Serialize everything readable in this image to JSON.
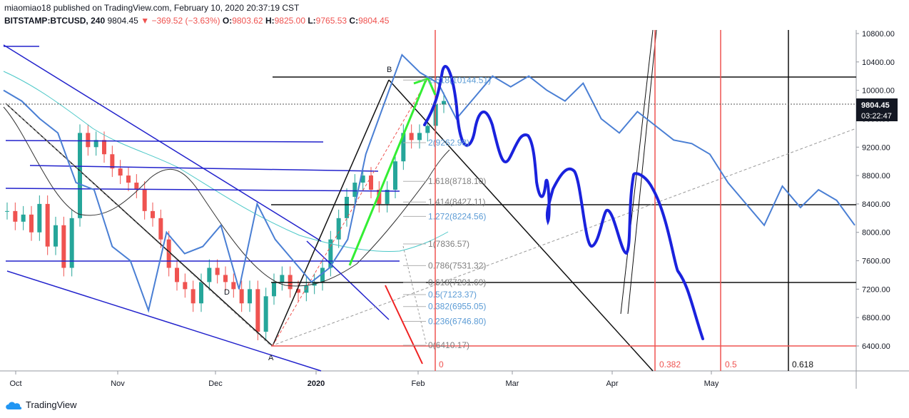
{
  "header": {
    "publisher_line": "miaomiao18 published on TradingView.com, February 10, 2020 20:37:19 CST",
    "symbol": "BITSTAMP:BTCUSD, 240",
    "price": "9804.45",
    "change": "−369.52 (−3.63%)",
    "o_label": "O:",
    "o_value": "9803.62",
    "h_label": "H:",
    "h_value": "9825.00",
    "l_label": "L:",
    "l_value": "9765.53",
    "c_label": "C:",
    "c_value": "9804.45"
  },
  "footer": {
    "brand": "TradingView"
  },
  "chart_data": {
    "type": "line",
    "title": "",
    "y_axis": {
      "min": 6000,
      "max": 10900,
      "ticks": [
        "10800.00",
        "10400.00",
        "10000.00",
        "9600.00",
        "9200.00",
        "8800.00",
        "8400.00",
        "8000.00",
        "7600.00",
        "7200.00",
        "6800.00",
        "6400.00"
      ]
    },
    "x_axis": {
      "ticks": [
        "Oct",
        "Nov",
        "Dec",
        "2020",
        "Feb",
        "Mar",
        "Apr",
        "May"
      ]
    },
    "current_price": "9804.45",
    "countdown": "03:22:47",
    "point_labels": [
      "B",
      "A",
      "D"
    ],
    "fib_levels": [
      {
        "label": "2.618(10144.51)",
        "value": 10144.51,
        "color": "#5b9bd5"
      },
      {
        "label": "2(9262.98)",
        "value": 9262.98,
        "color": "#5b9bd5"
      },
      {
        "label": "1.618(8718.10)",
        "value": 8718.1,
        "color": "#7f7f7f"
      },
      {
        "label": "1.414(8427.11)",
        "value": 8427.11,
        "color": "#7f7f7f"
      },
      {
        "label": "1.272(8224.56)",
        "value": 8224.56,
        "color": "#5b9bd5"
      },
      {
        "label": "1(7836.57)",
        "value": 7836.57,
        "color": "#7f7f7f"
      },
      {
        "label": "0.786(7531.32)",
        "value": 7531.32,
        "color": "#7f7f7f"
      },
      {
        "label": "0.618(7291.69)",
        "value": 7291.69,
        "color": "#7f7f7f"
      },
      {
        "label": "0.5(7123.37)",
        "value": 7123.37,
        "color": "#5b9bd5"
      },
      {
        "label": "0.382(6955.05)",
        "value": 6955.05,
        "color": "#5b9bd5"
      },
      {
        "label": "0.236(6746.80)",
        "value": 6746.8,
        "color": "#5b9bd5"
      },
      {
        "label": "0(6410.17)",
        "value": 6410.17,
        "color": "#7f7f7f"
      }
    ],
    "time_fib_labels": [
      "0",
      "0.382",
      "0.5",
      "0.618"
    ],
    "horizontal_levels": [
      10170,
      8390,
      7290,
      6390
    ],
    "series": [
      {
        "type": "candlestick",
        "approx_close": [
          8300,
          8150,
          8250,
          8000,
          8400,
          7800,
          8100,
          7500,
          8200,
          9400,
          9200,
          9300,
          9100,
          8900,
          8800,
          8700,
          8600,
          8300,
          8200,
          7900,
          7500,
          7300,
          7200,
          7000,
          7300,
          7500,
          7400,
          7300,
          7200,
          7000,
          7200,
          6600,
          7100,
          7300,
          7400,
          7200,
          7150,
          7250,
          7300,
          7500,
          7900,
          8200,
          8500,
          8700,
          8800,
          8600,
          8400,
          8600,
          9000,
          9400,
          9300,
          9400,
          9500,
          9800,
          9850
        ]
      },
      {
        "type": "line",
        "color": "#4a7fd4",
        "description": "projected comparison",
        "approx_values": [
          10000,
          9850,
          9600,
          9400,
          8700,
          8600,
          7800,
          7600,
          6900,
          8000,
          7700,
          7800,
          8100,
          7200,
          8400,
          7900,
          7600,
          7300,
          7500,
          7900,
          9100,
          9800,
          10500,
          10250,
          10100,
          9600,
          9900,
          10200,
          10050,
          10200,
          10000,
          9850,
          10100,
          9600,
          9400,
          9700,
          9500,
          9300,
          9250,
          9100,
          8700,
          8400,
          8100,
          8650,
          8350,
          8600,
          8450,
          8100
        ]
      },
      {
        "type": "line",
        "color": "#2222dd",
        "description": "hand-drawn projection"
      }
    ]
  }
}
